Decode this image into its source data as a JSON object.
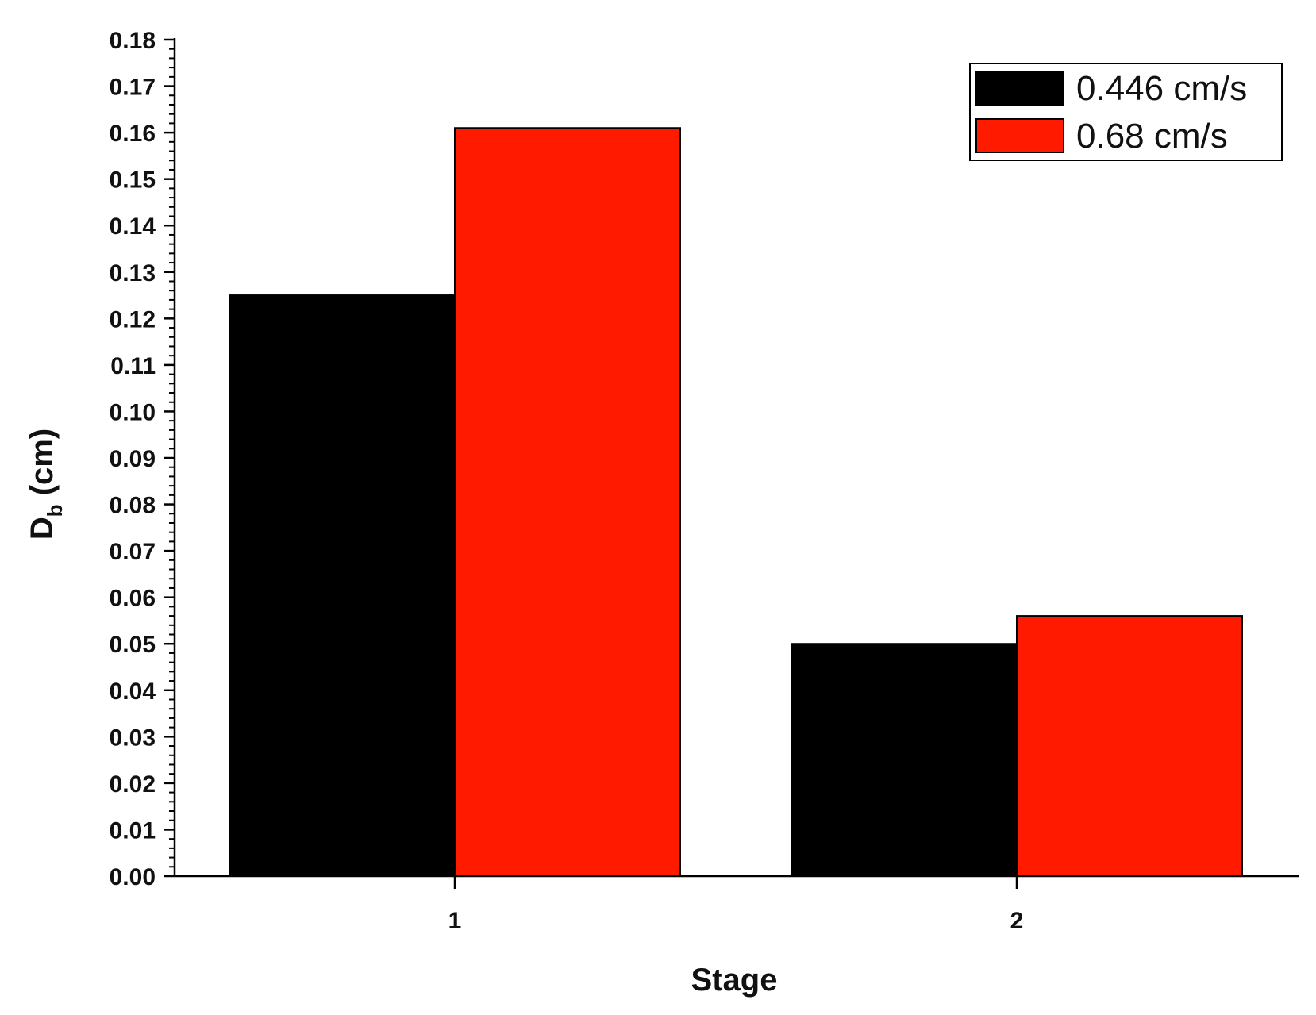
{
  "chart_data": {
    "type": "bar",
    "categories": [
      "1",
      "2"
    ],
    "series": [
      {
        "name": "0.446 cm/s",
        "color": "#000000",
        "values": [
          0.125,
          0.05
        ]
      },
      {
        "name": "0.68 cm/s",
        "color": "#ff1a00",
        "values": [
          0.161,
          0.056
        ]
      }
    ],
    "xlabel": "Stage",
    "ylabel": {
      "main": "D",
      "sub": "b",
      "suffix": " (cm)"
    },
    "ylim": [
      0,
      0.18
    ],
    "yticks": [
      "0.00",
      "0.01",
      "0.02",
      "0.03",
      "0.04",
      "0.05",
      "0.06",
      "0.07",
      "0.08",
      "0.09",
      "0.10",
      "0.11",
      "0.12",
      "0.13",
      "0.14",
      "0.15",
      "0.16",
      "0.17",
      "0.18"
    ],
    "grid": false,
    "legend_position": "top-right"
  }
}
